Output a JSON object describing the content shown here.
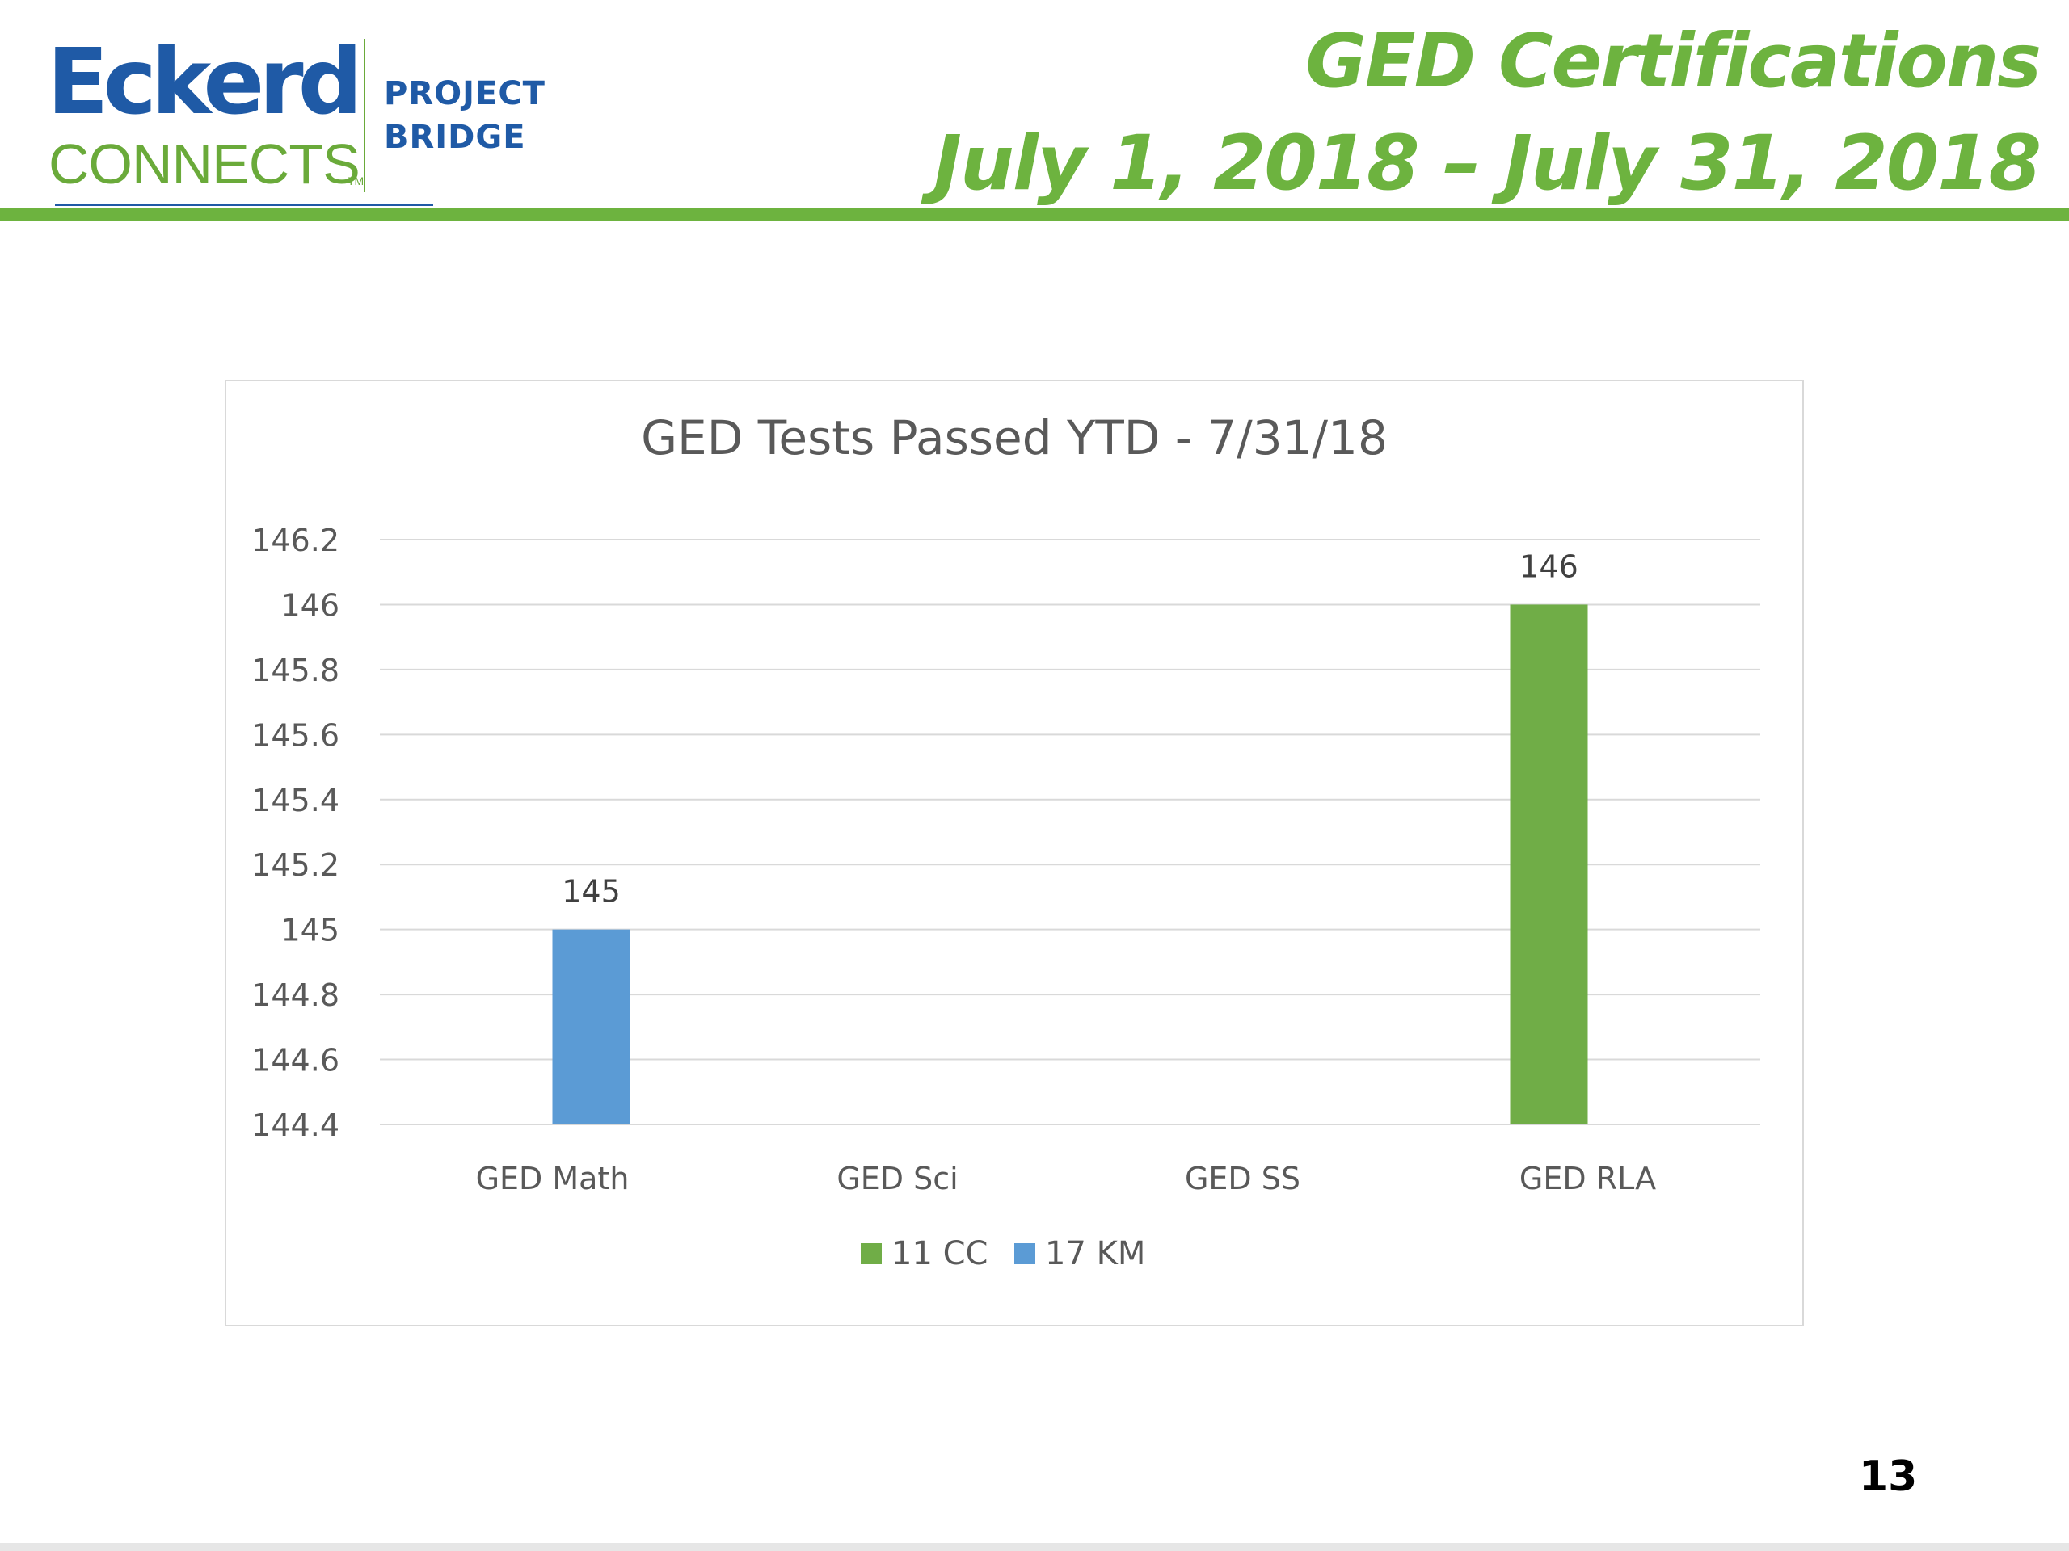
{
  "logo": {
    "brand_word": "Eckerd",
    "connects_word": "CONNECTS",
    "trademark": "TM",
    "program_line1": "PROJECT",
    "program_line2": "BRIDGE"
  },
  "header": {
    "title_line1": "GED Certifications",
    "title_line2": "July 1, 2018 – July 31, 2018"
  },
  "colors": {
    "accent_green": "#6db33f",
    "brand_blue": "#1f5aa6",
    "series_11cc": "#70ad47",
    "series_17km": "#5b9bd5"
  },
  "page_number": "13",
  "chart_data": {
    "type": "bar",
    "title": "GED Tests Passed YTD - 7/31/18",
    "xlabel": "",
    "ylabel": "",
    "categories": [
      "GED Math",
      "GED Sci",
      "GED SS",
      "GED RLA"
    ],
    "series": [
      {
        "name": "11 CC",
        "color": "#70ad47",
        "values": [
          null,
          null,
          null,
          146
        ]
      },
      {
        "name": "17 KM",
        "color": "#5b9bd5",
        "values": [
          145,
          null,
          null,
          null
        ]
      }
    ],
    "y_ticks": [
      "146.2",
      "146",
      "145.8",
      "145.6",
      "145.4",
      "145.2",
      "145",
      "144.8",
      "144.6",
      "144.4"
    ],
    "ylim": [
      144.4,
      146.2
    ],
    "grid": true,
    "legend_position": "bottom",
    "data_labels": true
  }
}
